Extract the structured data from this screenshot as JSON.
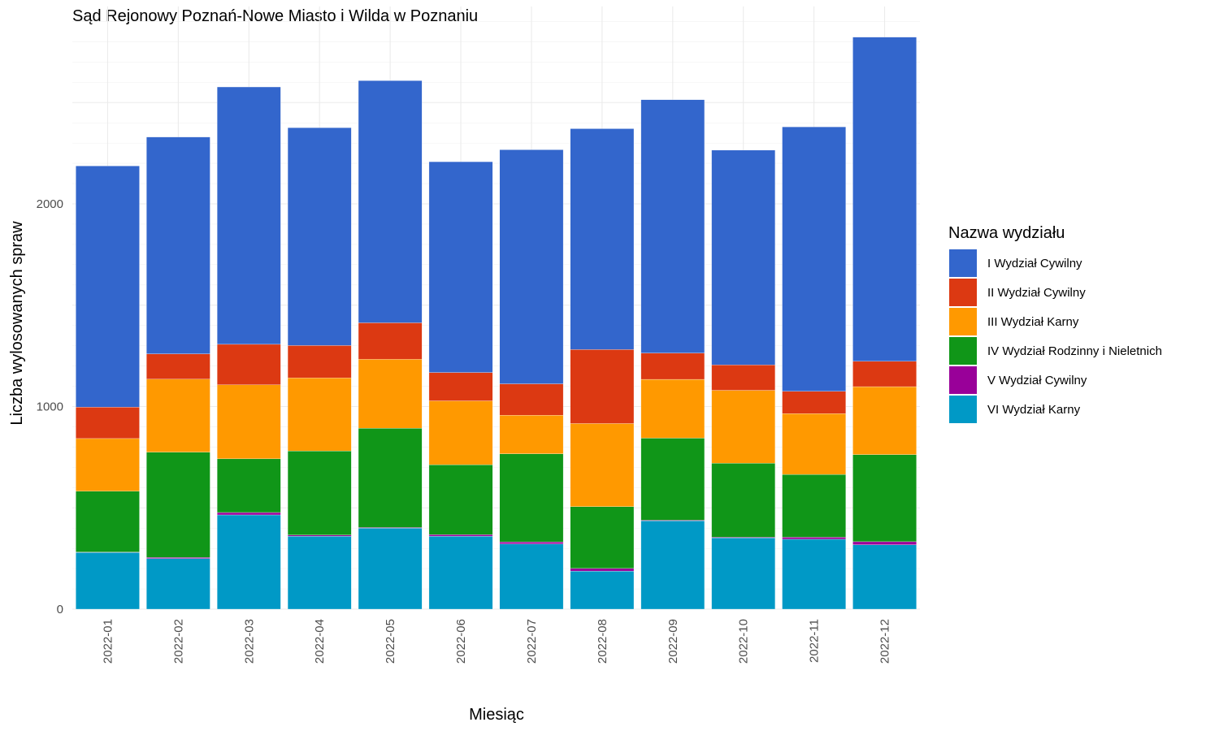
{
  "chart_data": {
    "type": "bar",
    "stacked": true,
    "title": "Sąd Rejonowy Poznań-Nowe Miasto i Wilda w Poznaniu",
    "xlabel": "Miesiąc",
    "ylabel": "Liczba wylosowanych spraw",
    "ylim": [
      0,
      2960
    ],
    "yticks": [
      0,
      1000,
      2000
    ],
    "grid": true,
    "legend_position": "right",
    "legend_title": "Nazwa wydziału",
    "categories": [
      "2022-01",
      "2022-02",
      "2022-03",
      "2022-04",
      "2022-05",
      "2022-06",
      "2022-07",
      "2022-08",
      "2022-09",
      "2022-10",
      "2022-11",
      "2022-12"
    ],
    "series": [
      {
        "name": "I Wydział Cywilny",
        "color": "#3366cc",
        "values": [
          1190,
          1070,
          1270,
          1075,
          1195,
          1040,
          1155,
          1090,
          1250,
          1060,
          1305,
          1600
        ]
      },
      {
        "name": "II Wydział Cywilny",
        "color": "#dc3912",
        "values": [
          155,
          125,
          200,
          160,
          180,
          140,
          155,
          365,
          130,
          125,
          110,
          125
        ]
      },
      {
        "name": "III Wydział Karny",
        "color": "#ff9900",
        "values": [
          260,
          360,
          365,
          360,
          340,
          315,
          190,
          410,
          290,
          360,
          300,
          335
        ]
      },
      {
        "name": "IV Wydział Rodzinny i Nieletnich",
        "color": "#109618",
        "values": [
          300,
          520,
          265,
          415,
          490,
          345,
          435,
          305,
          405,
          365,
          310,
          430
        ]
      },
      {
        "name": "V Wydział Cywilny",
        "color": "#990099",
        "values": [
          2,
          5,
          12,
          6,
          3,
          8,
          10,
          13,
          3,
          3,
          10,
          15
        ]
      },
      {
        "name": "VI Wydział Karny",
        "color": "#0099c6",
        "values": [
          280,
          250,
          465,
          360,
          400,
          360,
          322,
          188,
          436,
          352,
          345,
          318
        ]
      }
    ]
  }
}
